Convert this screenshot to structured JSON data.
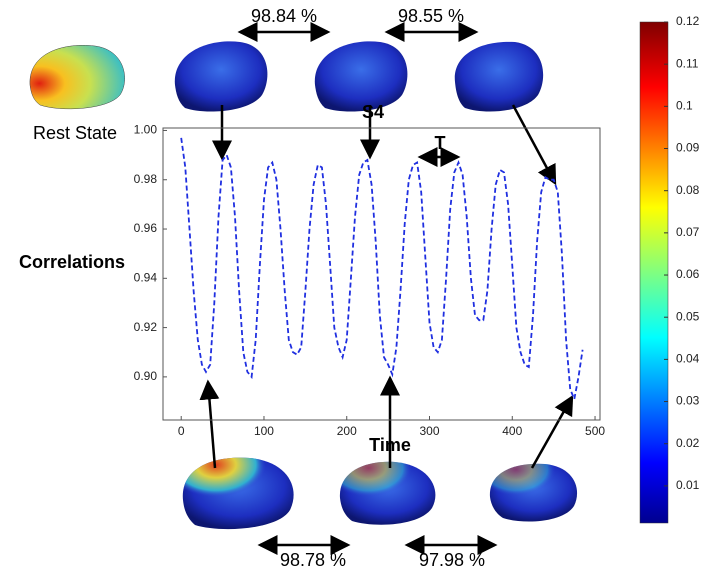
{
  "chart_data": {
    "type": "line",
    "title": "S4",
    "x_label": "Time",
    "y_label": "Correlations",
    "x": [
      0,
      5,
      10,
      15,
      20,
      25,
      30,
      35,
      40,
      45,
      50,
      55,
      60,
      65,
      70,
      75,
      80,
      85,
      90,
      95,
      100,
      105,
      110,
      115,
      120,
      125,
      130,
      135,
      140,
      145,
      150,
      155,
      160,
      165,
      170,
      175,
      180,
      185,
      190,
      195,
      200,
      205,
      210,
      215,
      220,
      225,
      230,
      235,
      240,
      245,
      250,
      255,
      260,
      265,
      270,
      275,
      280,
      285,
      290,
      295,
      300,
      305,
      310,
      315,
      320,
      325,
      330,
      335,
      340,
      345,
      350,
      355,
      360,
      365,
      370,
      375,
      380,
      385,
      390,
      395,
      400,
      405,
      410,
      415,
      420,
      425,
      430,
      435,
      440,
      445,
      450,
      455,
      460,
      465,
      470,
      475,
      480,
      485
    ],
    "values": [
      0.997,
      0.985,
      0.96,
      0.935,
      0.915,
      0.905,
      0.902,
      0.905,
      0.93,
      0.965,
      0.988,
      0.99,
      0.985,
      0.965,
      0.935,
      0.91,
      0.902,
      0.9,
      0.915,
      0.945,
      0.972,
      0.985,
      0.987,
      0.98,
      0.96,
      0.935,
      0.915,
      0.91,
      0.909,
      0.912,
      0.935,
      0.96,
      0.978,
      0.986,
      0.985,
      0.97,
      0.945,
      0.92,
      0.912,
      0.908,
      0.915,
      0.94,
      0.965,
      0.982,
      0.987,
      0.988,
      0.978,
      0.955,
      0.925,
      0.908,
      0.905,
      0.901,
      0.912,
      0.935,
      0.962,
      0.98,
      0.986,
      0.987,
      0.975,
      0.948,
      0.922,
      0.912,
      0.91,
      0.915,
      0.94,
      0.968,
      0.983,
      0.987,
      0.982,
      0.965,
      0.94,
      0.925,
      0.923,
      0.923,
      0.935,
      0.96,
      0.978,
      0.984,
      0.983,
      0.97,
      0.945,
      0.92,
      0.91,
      0.905,
      0.904,
      0.925,
      0.955,
      0.975,
      0.981,
      0.98,
      0.98,
      0.975,
      0.95,
      0.915,
      0.895,
      0.891,
      0.9,
      0.911
    ],
    "color": "#1f2fe0",
    "xlim": [
      -22,
      506
    ],
    "ylim": [
      0.8825,
      1.001
    ],
    "xticks": [
      0,
      100,
      200,
      300,
      400,
      500
    ],
    "yticks": [
      {
        "value": 0.9,
        "label": "0.90"
      },
      0.92,
      0.94,
      0.96,
      0.98,
      {
        "value": 1,
        "label": "1.00"
      }
    ],
    "annotations": [
      "Rest State",
      "T",
      "98.84 %",
      "98.55 %",
      "98.78 %",
      "97.98 %"
    ],
    "colorbar": {
      "lim": [
        0.0012,
        0.12
      ],
      "ticks": [
        0.01,
        0.02,
        0.03,
        0.04,
        0.05,
        0.06,
        0.07,
        0.08,
        0.09,
        0.1,
        0.11,
        0.12
      ]
    }
  }
}
